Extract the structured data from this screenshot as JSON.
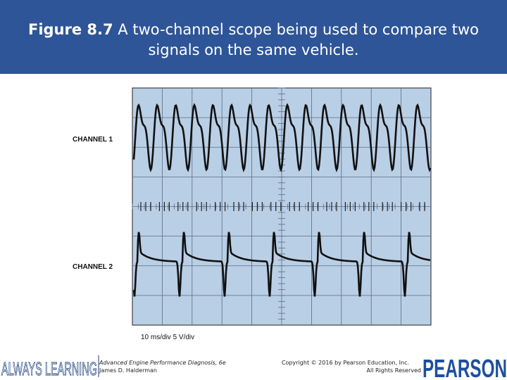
{
  "header": {
    "figure_label": "Figure 8.7",
    "caption": "A two-channel scope being used to compare two signals on the same vehicle."
  },
  "figure": {
    "channel_1_label": "CHANNEL 1",
    "channel_2_label": "CHANNEL 2",
    "scale_label": "10 ms/div 5 V/div"
  },
  "footer": {
    "brand": "ALWAYS LEARNING",
    "book_title": "Advanced Engine Performance Diagnosis, 6e",
    "author": "James D. Halderman",
    "copyright": "Copyright © 2016 by Pearson Education, Inc.",
    "rights": "All Rights Reserved",
    "publisher": "PEARSON"
  }
}
